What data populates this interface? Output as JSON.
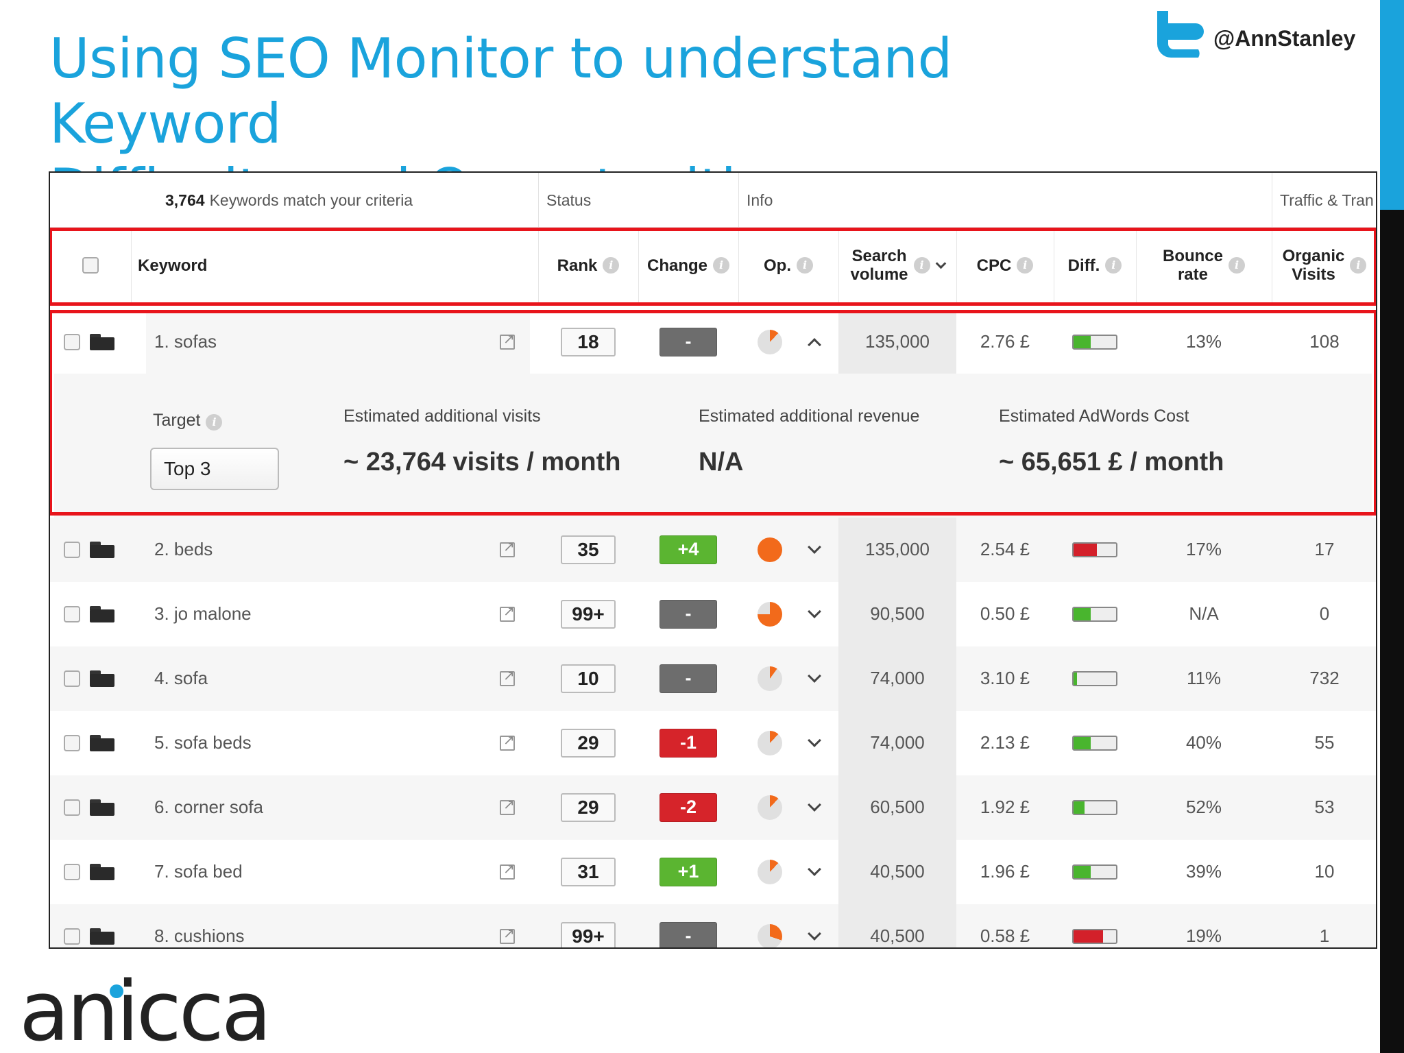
{
  "slide": {
    "title_line1": "Using SEO Monitor to understand Keyword",
    "title_line2": "Difficulty and Opportunities",
    "twitter_handle": "@AnnStanley",
    "brand": "anicca",
    "accent_color": "#1aa3dc",
    "icons": [
      "twitter-icon"
    ]
  },
  "table": {
    "match_count": "3,764",
    "match_text": "Keywords match your criteria",
    "groups": {
      "status": "Status",
      "info": "Info",
      "traffic": "Traffic & Tran"
    },
    "headers": {
      "keyword": "Keyword",
      "rank": "Rank",
      "change": "Change",
      "op": "Op.",
      "search_volume": [
        "Search",
        "volume"
      ],
      "cpc": "CPC",
      "diff": "Diff.",
      "bounce_rate": [
        "Bounce",
        "rate"
      ],
      "organic_visits": [
        "Organic",
        "Visits"
      ]
    },
    "rows": [
      {
        "keyword": "1. sofas",
        "rank": "18",
        "change": "-",
        "change_type": "neutral",
        "op_fraction": 0.12,
        "search_volume": "135,000",
        "cpc": "2.76 £",
        "diff_color": "green",
        "diff_level": 0.4,
        "bounce_rate": "13%",
        "organic_visits": "108",
        "expanded": true
      },
      {
        "keyword": "2. beds",
        "rank": "35",
        "change": "+4",
        "change_type": "up",
        "op_fraction": 1.0,
        "search_volume": "135,000",
        "cpc": "2.54 £",
        "diff_color": "red",
        "diff_level": 0.55,
        "bounce_rate": "17%",
        "organic_visits": "17"
      },
      {
        "keyword": "3. jo malone",
        "rank": "99+",
        "change": "-",
        "change_type": "neutral",
        "op_fraction": 0.75,
        "search_volume": "90,500",
        "cpc": "0.50 £",
        "diff_color": "green",
        "diff_level": 0.4,
        "bounce_rate": "N/A",
        "organic_visits": "0"
      },
      {
        "keyword": "4. sofa",
        "rank": "10",
        "change": "-",
        "change_type": "neutral",
        "op_fraction": 0.1,
        "search_volume": "74,000",
        "cpc": "3.10 £",
        "diff_color": "green",
        "diff_level": 0.08,
        "bounce_rate": "11%",
        "organic_visits": "732"
      },
      {
        "keyword": "5. sofa beds",
        "rank": "29",
        "change": "-1",
        "change_type": "down",
        "op_fraction": 0.12,
        "search_volume": "74,000",
        "cpc": "2.13 £",
        "diff_color": "green",
        "diff_level": 0.4,
        "bounce_rate": "40%",
        "organic_visits": "55"
      },
      {
        "keyword": "6. corner sofa",
        "rank": "29",
        "change": "-2",
        "change_type": "down",
        "op_fraction": 0.12,
        "search_volume": "60,500",
        "cpc": "1.92 £",
        "diff_color": "green",
        "diff_level": 0.25,
        "bounce_rate": "52%",
        "organic_visits": "53"
      },
      {
        "keyword": "7. sofa bed",
        "rank": "31",
        "change": "+1",
        "change_type": "up",
        "op_fraction": 0.12,
        "search_volume": "40,500",
        "cpc": "1.96 £",
        "diff_color": "green",
        "diff_level": 0.4,
        "bounce_rate": "39%",
        "organic_visits": "10"
      },
      {
        "keyword": "8. cushions",
        "rank": "99+",
        "change": "-",
        "change_type": "neutral",
        "op_fraction": 0.3,
        "search_volume": "40,500",
        "cpc": "0.58 £",
        "diff_color": "red",
        "diff_level": 0.7,
        "bounce_rate": "19%",
        "organic_visits": "1"
      }
    ],
    "expanded": {
      "target_label": "Target",
      "target_value": "Top 3",
      "visits_label": "Estimated additional visits",
      "visits_value": "~ 23,764 visits / month",
      "revenue_label": "Estimated additional revenue",
      "revenue_value": "N/A",
      "adwords_label": "Estimated AdWords Cost",
      "adwords_value": "~ 65,651 £ / month"
    },
    "colors": {
      "up": "#5bb531",
      "down": "#d6242a",
      "neutral": "#6d6d6d",
      "op_fill": "#f26a1b",
      "highlight_border": "#e8141b",
      "diff_green": "#49b52e",
      "diff_red": "#d3202a"
    }
  }
}
